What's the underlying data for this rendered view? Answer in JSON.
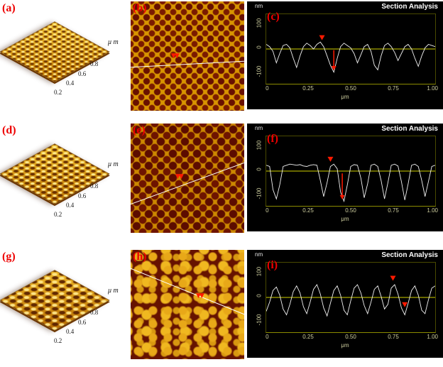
{
  "colors": {
    "label_red": "#ee0000",
    "marker_red": "#ff1a00",
    "section_bg": "#000000",
    "trace_white": "#f2f2f2",
    "zero_line_yellow": "#cfcf00",
    "surface_gold": "#e0a014",
    "image_spot_maroon": "#681000"
  },
  "axis_3d": {
    "unit": "μ m",
    "ticks": [
      "0.2",
      "0.4",
      "0.6",
      "0.8"
    ]
  },
  "section_axis": {
    "title": "Section Analysis",
    "y_unit": "nm",
    "y_ticks": [
      "100",
      "0",
      "-100"
    ],
    "x_ticks": [
      "0",
      "0.25",
      "0.50",
      "0.75",
      "1.00"
    ],
    "x_unit": "μm"
  },
  "rows": [
    {
      "surface_label": "(a)",
      "image_label": "(b)",
      "section_label": "(c)",
      "image_marker": "▼▼"
    },
    {
      "surface_label": "(d)",
      "image_label": "(e)",
      "section_label": "(f)",
      "image_marker": "▼▼"
    },
    {
      "surface_label": "(g)",
      "image_label": "(h)",
      "section_label": "(i)",
      "image_marker": "▼▼"
    }
  ],
  "chart_data": [
    {
      "type": "line",
      "panel": "(c)",
      "title": "Section Analysis",
      "xlabel": "μm",
      "ylabel": "nm",
      "xlim": [
        0,
        1.0
      ],
      "ylim": [
        -150,
        150
      ],
      "x": [
        0,
        0.02,
        0.04,
        0.06,
        0.08,
        0.1,
        0.12,
        0.14,
        0.16,
        0.18,
        0.2,
        0.22,
        0.24,
        0.26,
        0.28,
        0.3,
        0.32,
        0.34,
        0.36,
        0.38,
        0.4,
        0.42,
        0.44,
        0.46,
        0.48,
        0.5,
        0.52,
        0.54,
        0.56,
        0.58,
        0.6,
        0.62,
        0.64,
        0.66,
        0.68,
        0.7,
        0.72,
        0.74,
        0.76,
        0.78,
        0.8,
        0.82,
        0.84,
        0.86,
        0.88,
        0.9,
        0.92,
        0.94,
        0.96,
        0.98,
        1.0
      ],
      "y": [
        20,
        10,
        -10,
        -60,
        -20,
        15,
        20,
        5,
        -40,
        -80,
        -30,
        10,
        25,
        15,
        0,
        20,
        30,
        10,
        -30,
        -70,
        -100,
        -40,
        10,
        25,
        15,
        5,
        -20,
        -60,
        -25,
        10,
        20,
        -10,
        -70,
        -90,
        -30,
        15,
        25,
        10,
        -15,
        -50,
        -20,
        10,
        20,
        0,
        -40,
        -75,
        -30,
        5,
        20,
        15,
        10
      ],
      "markers": [
        {
          "type": "triangle",
          "x": 0.33,
          "y": 38
        },
        {
          "type": "arrow",
          "x": 0.4,
          "y_from": -5,
          "y_to": -92
        }
      ]
    },
    {
      "type": "line",
      "panel": "(f)",
      "title": "Section Analysis",
      "xlabel": "μm",
      "ylabel": "nm",
      "xlim": [
        0,
        1.0
      ],
      "ylim": [
        -150,
        150
      ],
      "x": [
        0,
        0.02,
        0.04,
        0.06,
        0.08,
        0.1,
        0.12,
        0.14,
        0.16,
        0.18,
        0.2,
        0.22,
        0.24,
        0.26,
        0.28,
        0.3,
        0.32,
        0.34,
        0.36,
        0.38,
        0.4,
        0.42,
        0.44,
        0.46,
        0.48,
        0.5,
        0.52,
        0.54,
        0.56,
        0.58,
        0.6,
        0.62,
        0.64,
        0.66,
        0.68,
        0.7,
        0.72,
        0.74,
        0.76,
        0.78,
        0.8,
        0.82,
        0.84,
        0.86,
        0.88,
        0.9,
        0.92,
        0.94,
        0.96,
        0.98,
        1.0
      ],
      "y": [
        25,
        20,
        -80,
        -120,
        -60,
        20,
        25,
        30,
        28,
        25,
        28,
        22,
        20,
        25,
        28,
        25,
        -40,
        -110,
        -50,
        20,
        30,
        10,
        -90,
        -130,
        -60,
        20,
        28,
        25,
        -30,
        -115,
        -55,
        25,
        30,
        20,
        -40,
        -120,
        -50,
        25,
        30,
        22,
        -45,
        -125,
        -55,
        25,
        30,
        20,
        -40,
        -110,
        -45,
        20,
        25
      ],
      "markers": [
        {
          "type": "triangle",
          "x": 0.38,
          "y": 40
        },
        {
          "type": "arrow",
          "x": 0.45,
          "y_from": -10,
          "y_to": -122
        }
      ]
    },
    {
      "type": "line",
      "panel": "(i)",
      "title": "Section Analysis",
      "xlabel": "μm",
      "ylabel": "nm",
      "xlim": [
        0,
        1.0
      ],
      "ylim": [
        -150,
        150
      ],
      "x": [
        0,
        0.02,
        0.04,
        0.06,
        0.08,
        0.1,
        0.12,
        0.14,
        0.16,
        0.18,
        0.2,
        0.22,
        0.24,
        0.26,
        0.28,
        0.3,
        0.32,
        0.34,
        0.36,
        0.38,
        0.4,
        0.42,
        0.44,
        0.46,
        0.48,
        0.5,
        0.52,
        0.54,
        0.56,
        0.58,
        0.6,
        0.62,
        0.64,
        0.66,
        0.68,
        0.7,
        0.72,
        0.74,
        0.76,
        0.78,
        0.8,
        0.82,
        0.84,
        0.86,
        0.88,
        0.9,
        0.92,
        0.94,
        0.96,
        0.98,
        1.0
      ],
      "y": [
        -60,
        -20,
        30,
        45,
        10,
        -50,
        -75,
        -30,
        25,
        50,
        20,
        -40,
        -70,
        -20,
        35,
        55,
        15,
        -45,
        -80,
        -25,
        30,
        50,
        10,
        -55,
        -75,
        -15,
        40,
        55,
        20,
        -35,
        -70,
        -20,
        35,
        50,
        5,
        -50,
        -30,
        40,
        55,
        15,
        -45,
        -75,
        -25,
        30,
        50,
        10,
        -55,
        -70,
        -10,
        40,
        50
      ],
      "markers": [
        {
          "type": "triangle",
          "x": 0.75,
          "y": 72
        },
        {
          "type": "triangle",
          "x": 0.82,
          "y": -42
        }
      ]
    }
  ]
}
